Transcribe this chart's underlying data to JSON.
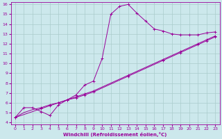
{
  "xlabel": "Windchill (Refroidissement éolien,°C)",
  "bg_color": "#cce8ec",
  "grid_color": "#aacccc",
  "line_color": "#990099",
  "xlim": [
    -0.5,
    23.5
  ],
  "ylim": [
    3.8,
    16.2
  ],
  "xticks": [
    0,
    1,
    2,
    3,
    4,
    5,
    6,
    7,
    8,
    9,
    10,
    11,
    12,
    13,
    14,
    15,
    16,
    17,
    18,
    19,
    20,
    21,
    22,
    23
  ],
  "yticks": [
    4,
    5,
    6,
    7,
    8,
    9,
    10,
    11,
    12,
    13,
    14,
    15,
    16
  ],
  "line1_x": [
    0,
    1,
    2,
    3,
    4,
    5,
    6,
    7,
    8,
    9,
    10,
    11,
    12,
    13,
    14,
    15,
    16,
    17,
    18,
    19,
    20,
    21,
    22,
    23
  ],
  "line1_y": [
    4.5,
    5.5,
    5.5,
    5.1,
    4.7,
    5.8,
    6.3,
    6.8,
    7.8,
    8.2,
    10.5,
    15.0,
    15.8,
    16.0,
    15.1,
    14.3,
    13.5,
    13.3,
    13.0,
    12.9,
    12.9,
    12.9,
    13.1,
    13.2
  ],
  "line2_x": [
    0,
    1,
    2,
    3,
    4,
    5,
    6,
    7,
    8,
    9,
    10,
    11,
    12,
    13,
    14,
    15,
    16,
    17,
    18,
    19,
    20,
    21,
    22,
    23
  ],
  "line2_y": [
    4.5,
    5.0,
    5.3,
    5.5,
    5.8,
    6.0,
    6.3,
    6.5,
    6.8,
    7.1,
    7.5,
    7.9,
    8.3,
    8.7,
    9.1,
    9.5,
    9.9,
    10.3,
    10.7,
    11.1,
    11.5,
    11.9,
    12.3,
    12.7
  ],
  "line3_x": [
    0,
    1,
    2,
    3,
    4,
    5,
    6,
    7,
    8,
    9,
    10,
    11,
    12,
    13,
    14,
    15,
    16,
    17,
    18,
    19,
    20,
    21,
    22,
    23
  ],
  "line3_y": [
    4.5,
    4.8,
    5.1,
    5.4,
    5.7,
    6.0,
    6.3,
    6.6,
    6.9,
    7.2,
    7.6,
    8.0,
    8.4,
    8.8,
    9.2,
    9.6,
    10.0,
    10.4,
    10.8,
    11.2,
    11.6,
    12.0,
    12.4,
    12.8
  ],
  "line2_markers_x": [
    0,
    3,
    4,
    5,
    6,
    7,
    8,
    9,
    13,
    17,
    19,
    21,
    22,
    23
  ],
  "line2_markers_y": [
    4.5,
    5.5,
    5.8,
    6.0,
    6.3,
    6.5,
    6.8,
    7.1,
    8.7,
    10.3,
    11.1,
    11.9,
    12.3,
    12.7
  ],
  "line3_markers_x": [
    0,
    3,
    4,
    5,
    6,
    7,
    8,
    9,
    13,
    17,
    19,
    21,
    22,
    23
  ],
  "line3_markers_y": [
    4.5,
    5.4,
    5.7,
    6.0,
    6.3,
    6.6,
    6.9,
    7.2,
    8.8,
    10.4,
    11.2,
    12.0,
    12.4,
    12.8
  ]
}
